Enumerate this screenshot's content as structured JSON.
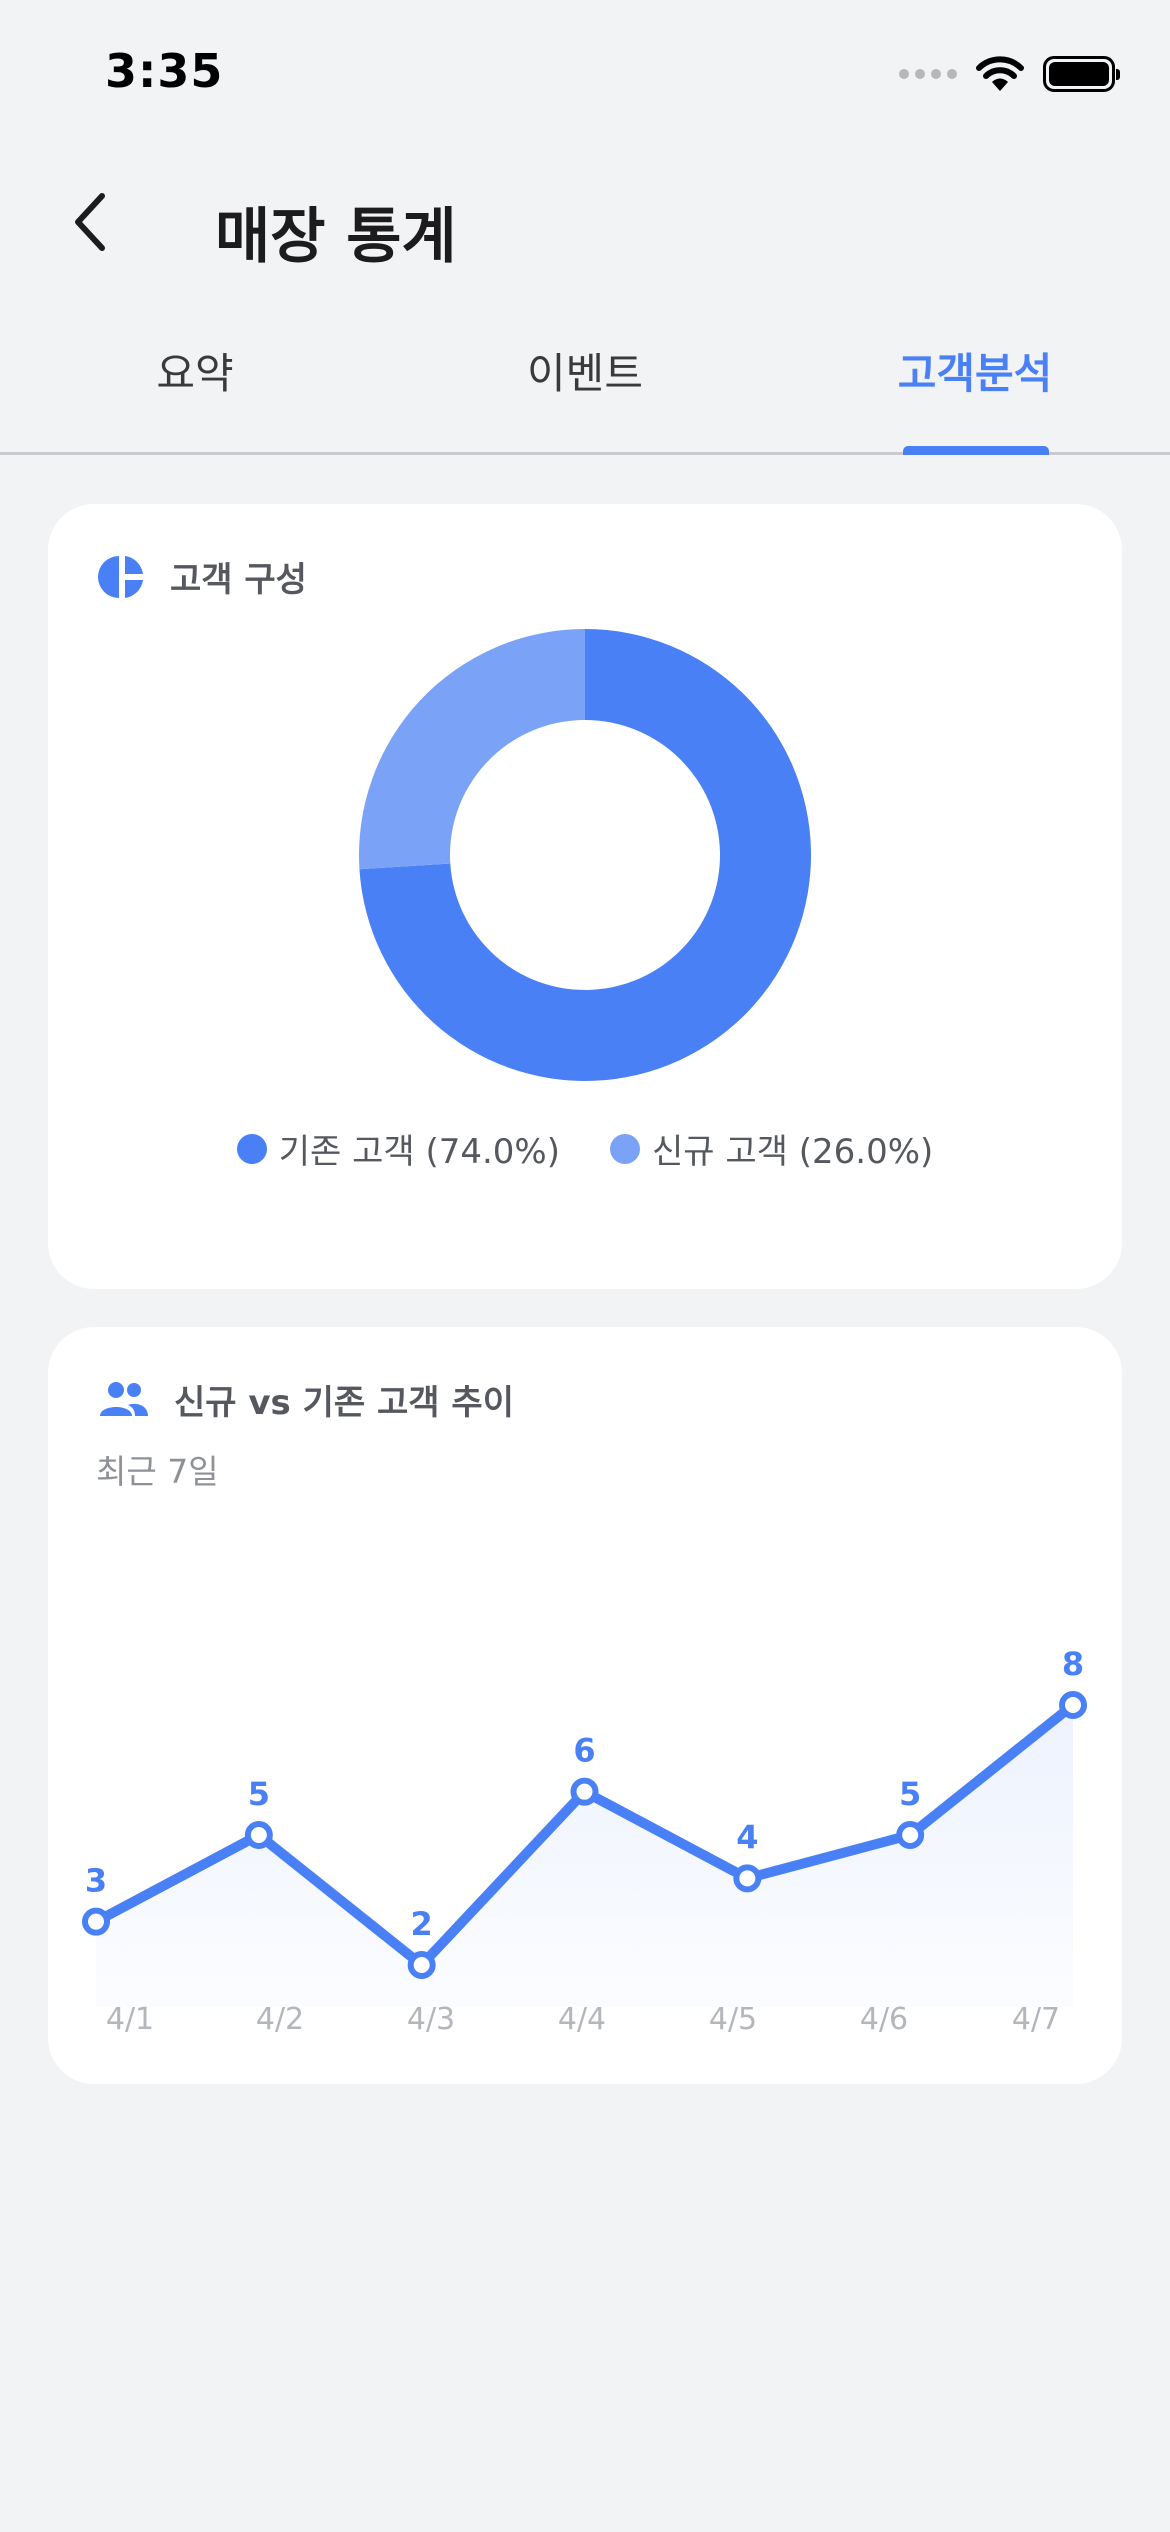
{
  "status_bar": {
    "time": "3:35"
  },
  "header": {
    "title": "매장 통계"
  },
  "tabs": [
    {
      "label": "요약",
      "active": false
    },
    {
      "label": "이벤트",
      "active": false
    },
    {
      "label": "고객분석",
      "active": true
    }
  ],
  "colors": {
    "accent": "#4a80f5",
    "existing": "#4a80f5",
    "new": "#7aa3f8",
    "axis_label": "#b3b6bb"
  },
  "customer_composition": {
    "title": "고객 구성",
    "icon": "pie-chart-icon",
    "chart_data": {
      "type": "pie",
      "slices": [
        {
          "label": "기존 고객 (74.0%)",
          "value": 74.0,
          "color": "#4a80f5"
        },
        {
          "label": "신규 고객 (26.0%)",
          "value": 26.0,
          "color": "#7aa3f8"
        }
      ],
      "legend_position": "bottom"
    }
  },
  "customer_trend": {
    "title": "신규 vs 기존 고객 추이",
    "subtitle": "최근 7일",
    "icon": "users-icon",
    "chart_data": {
      "type": "line",
      "x": [
        "4/1",
        "4/2",
        "4/3",
        "4/4",
        "4/5",
        "4/6",
        "4/7"
      ],
      "series": [
        {
          "values": [
            3,
            5,
            2,
            6,
            4,
            5,
            8
          ],
          "color": "#4a80f5"
        }
      ],
      "ylim": [
        0,
        10
      ],
      "grid": false,
      "data_labels": true
    }
  }
}
